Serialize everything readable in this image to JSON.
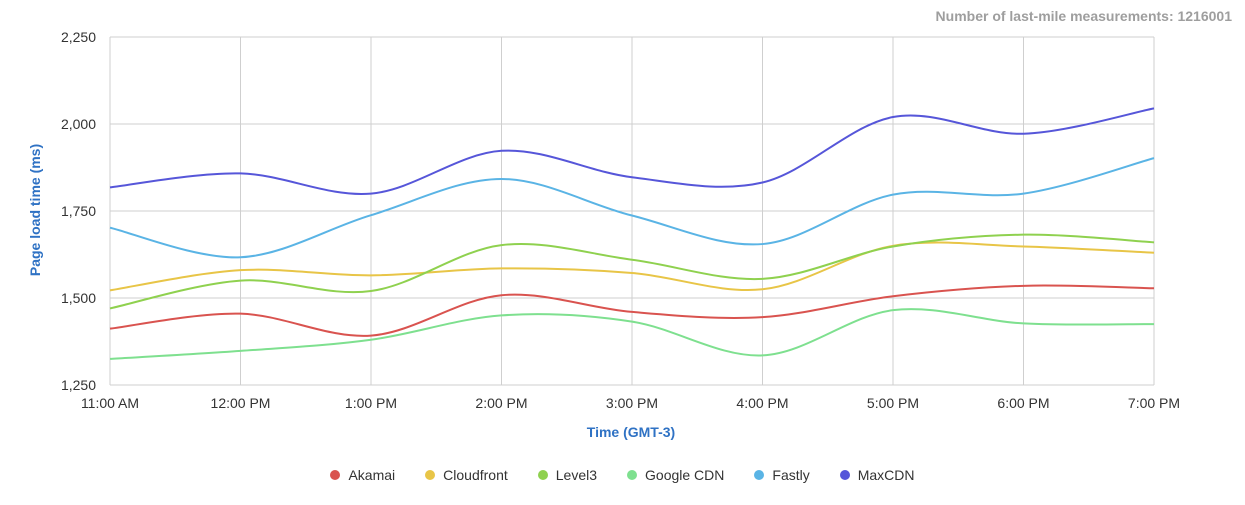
{
  "header": {
    "measurements_text": "Number of last-mile measurements: 1216001"
  },
  "chart_data": {
    "type": "line",
    "xlabel": "Time (GMT-3)",
    "ylabel": "Page load time (ms)",
    "categories": [
      "11:00 AM",
      "12:00 PM",
      "1:00 PM",
      "2:00 PM",
      "3:00 PM",
      "4:00 PM",
      "5:00 PM",
      "6:00 PM",
      "7:00 PM"
    ],
    "ylim": [
      1250,
      2250
    ],
    "yticks": [
      1250,
      1500,
      1750,
      2000,
      2250
    ],
    "ytick_labels": [
      "1,250",
      "1,500",
      "1,750",
      "2,000",
      "2,250"
    ],
    "grid": true,
    "legend_position": "bottom",
    "series": [
      {
        "name": "Akamai",
        "color": "#d9534f",
        "values": [
          1412,
          1455,
          1392,
          1508,
          1460,
          1445,
          1505,
          1535,
          1528
        ]
      },
      {
        "name": "Cloudfront",
        "color": "#e8c547",
        "values": [
          1522,
          1580,
          1565,
          1585,
          1572,
          1525,
          1650,
          1648,
          1630
        ]
      },
      {
        "name": "Level3",
        "color": "#8fd14f",
        "values": [
          1470,
          1550,
          1520,
          1652,
          1610,
          1555,
          1648,
          1682,
          1660
        ]
      },
      {
        "name": "Google CDN",
        "color": "#7ee08f",
        "values": [
          1325,
          1348,
          1380,
          1450,
          1432,
          1335,
          1465,
          1427,
          1425
        ]
      },
      {
        "name": "Fastly",
        "color": "#5ab4e5",
        "values": [
          1702,
          1617,
          1738,
          1842,
          1737,
          1655,
          1797,
          1800,
          1902
        ]
      },
      {
        "name": "MaxCDN",
        "color": "#5656d9",
        "values": [
          1818,
          1858,
          1800,
          1923,
          1847,
          1832,
          2020,
          1972,
          2045
        ]
      }
    ]
  }
}
